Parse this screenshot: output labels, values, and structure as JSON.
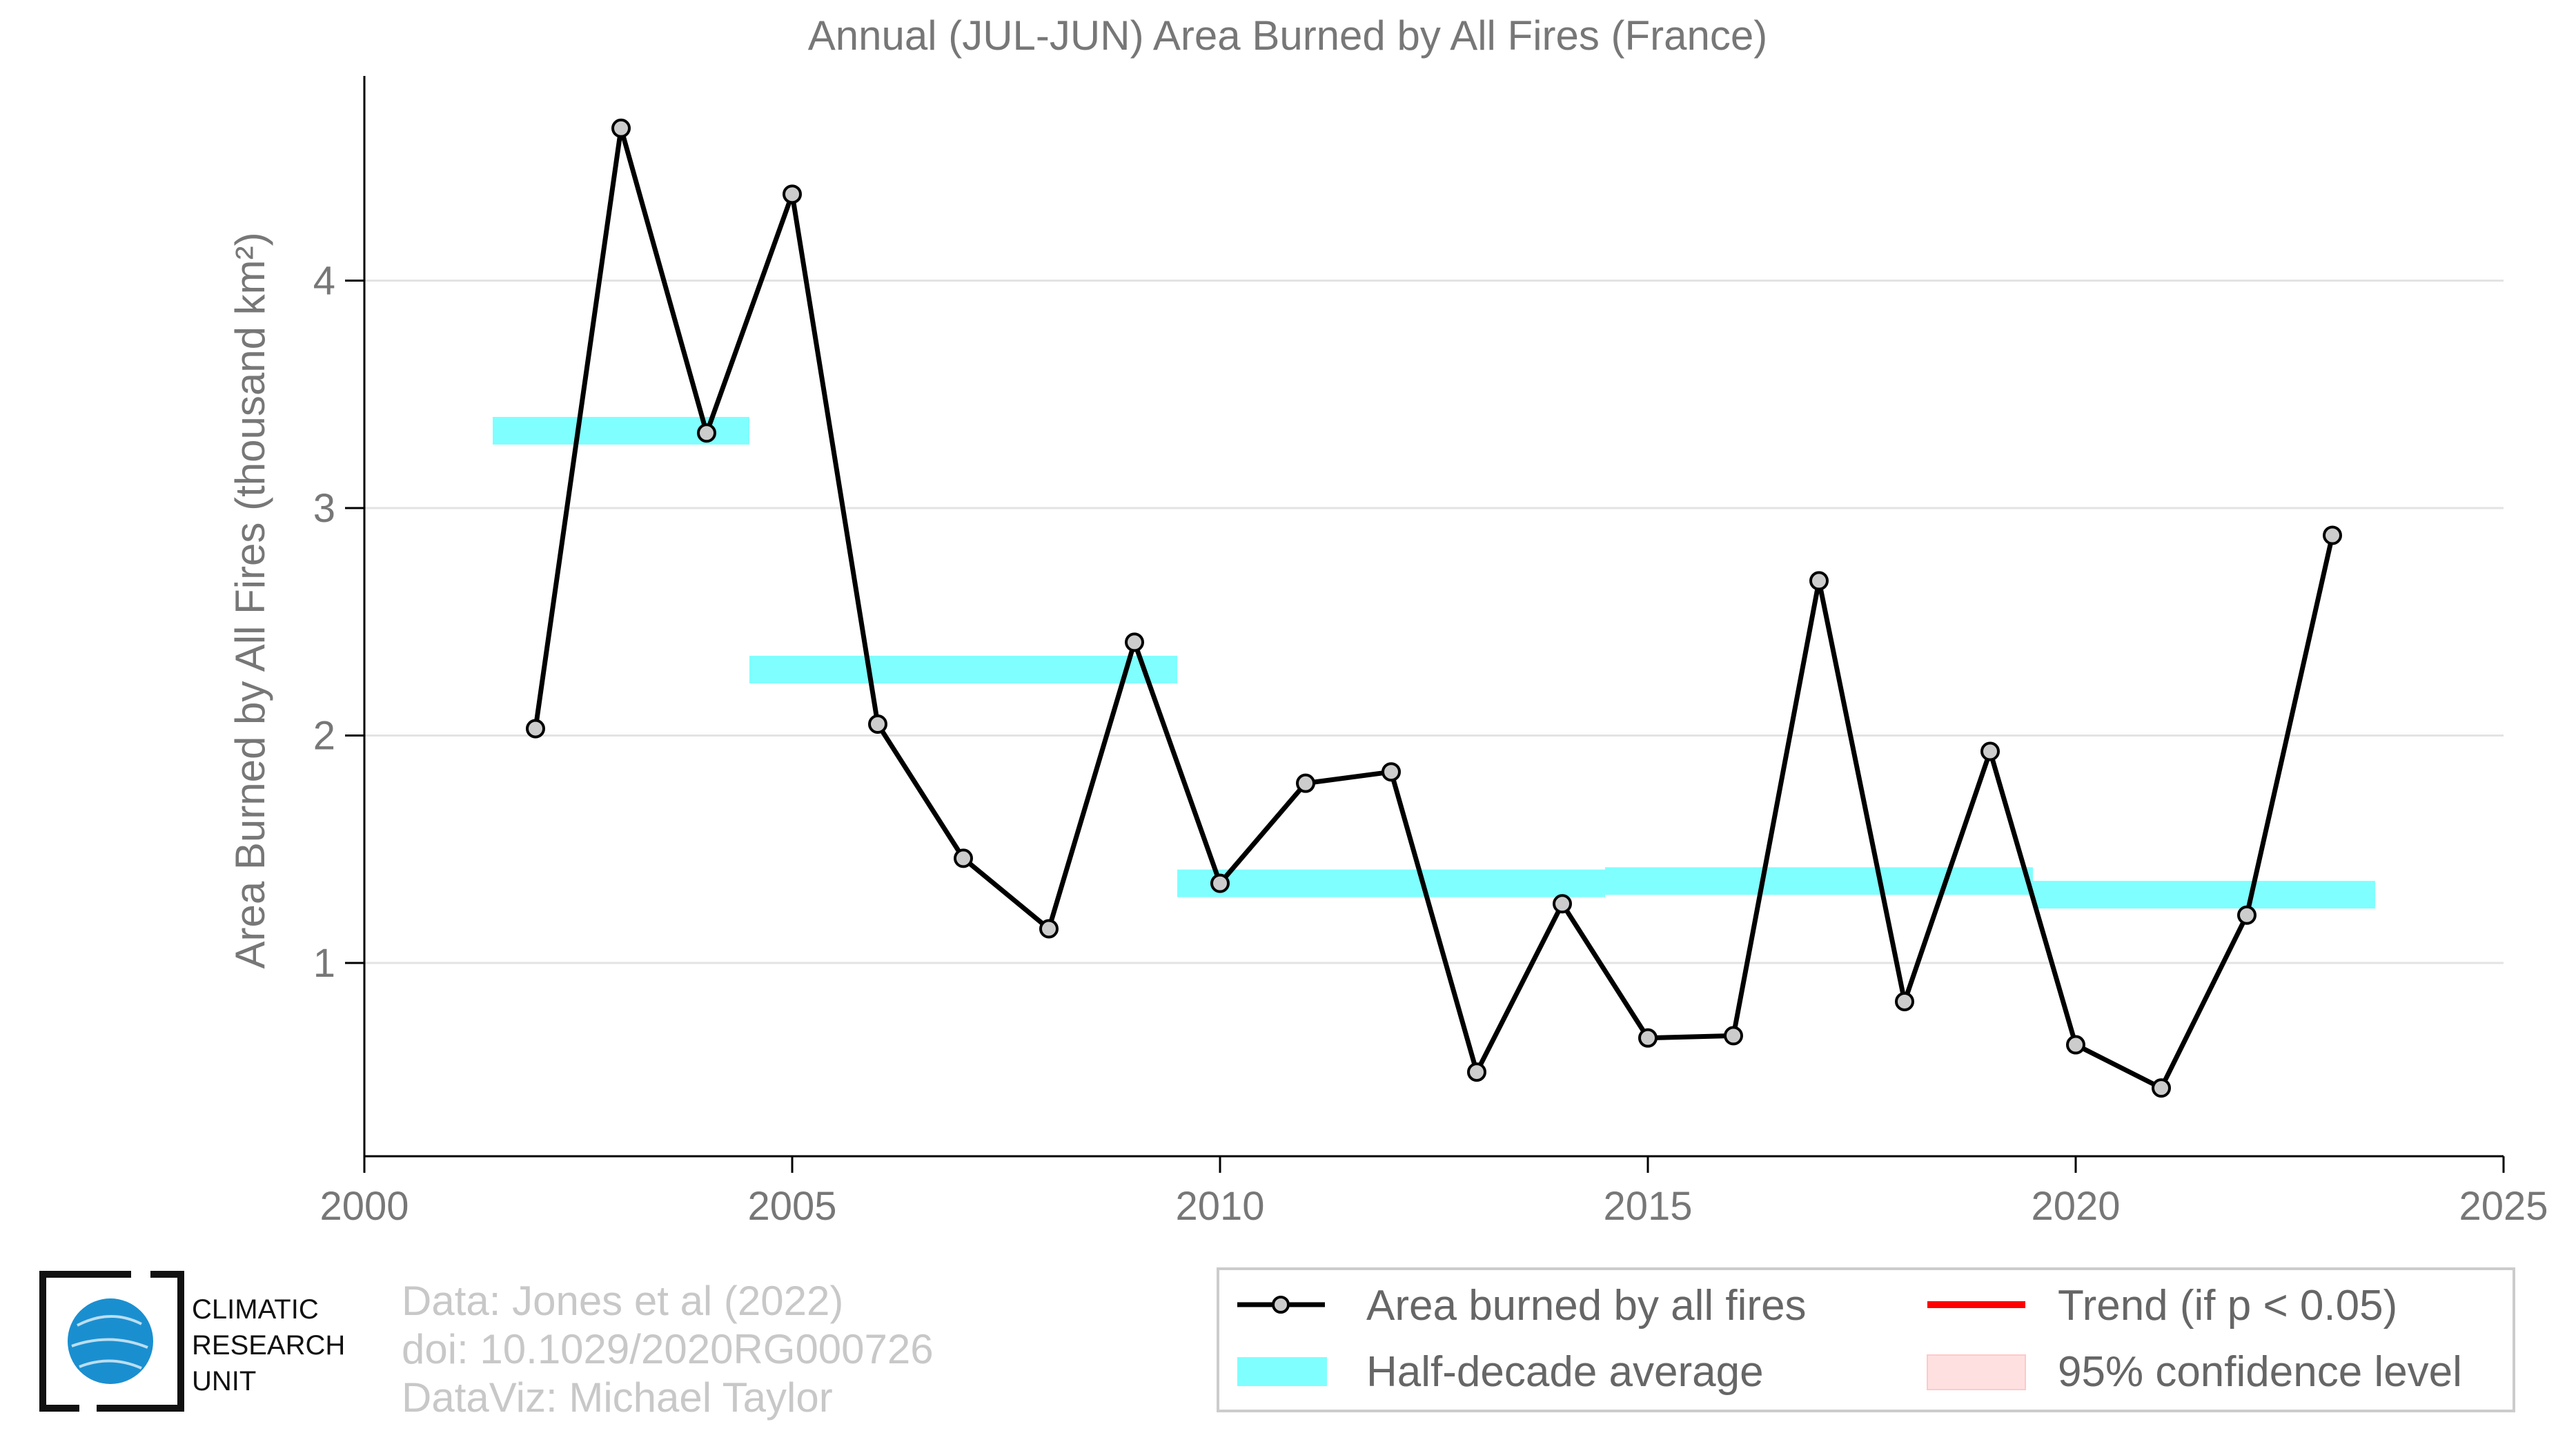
{
  "chart_data": {
    "type": "line",
    "title": "Annual (JUL-JUN) Area Burned by All Fires (France)",
    "ylabel": "Area Burned by All Fires (thousand km²)",
    "xlabel": "",
    "xlim": [
      2000,
      2025
    ],
    "ylim": [
      0.15,
      4.9
    ],
    "xticks": [
      2000,
      2005,
      2010,
      2015,
      2020,
      2025
    ],
    "yticks": [
      1,
      2,
      3,
      4
    ],
    "grid": "horizontal",
    "series": [
      {
        "name": "Area burned by all fires",
        "color": "#000000",
        "marker_fill": "#cccccc",
        "x": [
          2002,
          2003,
          2004,
          2005,
          2006,
          2007,
          2008,
          2009,
          2010,
          2011,
          2012,
          2013,
          2014,
          2015,
          2016,
          2017,
          2018,
          2019,
          2020,
          2021,
          2022,
          2023
        ],
        "y": [
          2.03,
          4.67,
          3.33,
          4.38,
          2.05,
          1.46,
          1.15,
          2.41,
          1.35,
          1.79,
          1.84,
          0.52,
          1.26,
          0.67,
          0.68,
          2.68,
          0.83,
          1.93,
          0.64,
          0.45,
          1.21,
          2.88
        ]
      },
      {
        "name": "Half-decade average",
        "color": "#7fffff",
        "segments": [
          {
            "x0": 2001.5,
            "x1": 2004.5,
            "y": 3.34
          },
          {
            "x0": 2004.5,
            "x1": 2009.5,
            "y": 2.29
          },
          {
            "x0": 2009.5,
            "x1": 2014.5,
            "y": 1.35
          },
          {
            "x0": 2014.5,
            "x1": 2019.5,
            "y": 1.36
          },
          {
            "x0": 2019.5,
            "x1": 2023.5,
            "y": 1.3
          }
        ]
      }
    ],
    "legend": {
      "placement": "bottom-right",
      "entries": [
        {
          "label": "Area burned by all fires",
          "kind": "line-marker",
          "color": "#000000"
        },
        {
          "label": "Trend (if p < 0.05)",
          "kind": "line",
          "color": "#ff0000"
        },
        {
          "label": "Half-decade average",
          "kind": "band",
          "color": "#7fffff"
        },
        {
          "label": "95% confidence level",
          "kind": "patch",
          "color": "#ffe0e0"
        }
      ]
    }
  },
  "credits": {
    "line1": "Data: Jones et al (2022)",
    "line2": "doi: 10.1029/2020RG000726",
    "line3": "DataViz: Michael Taylor"
  },
  "logo": {
    "line1": "CLIMATIC",
    "line2": "RESEARCH",
    "line3": "UNIT",
    "globe_color": "#1a8fd0"
  }
}
